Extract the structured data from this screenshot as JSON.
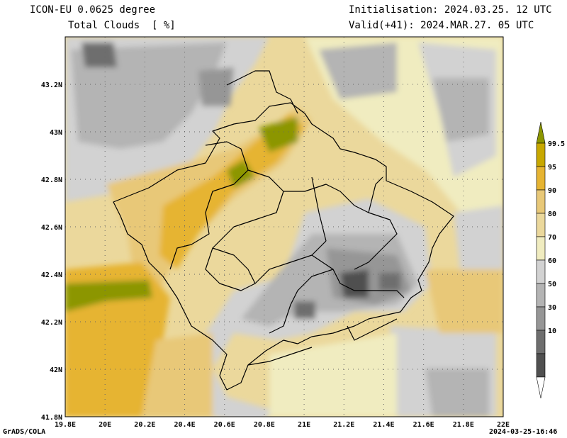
{
  "header": {
    "model": "ICON-EU 0.0625 degree",
    "variable": "Total Clouds  [ %]",
    "init": "Initialisation: 2024.03.25. 12 UTC",
    "valid": "Valid(+41): 2024.MAR.27. 05 UTC"
  },
  "map": {
    "lat_labels": [
      "43.2N",
      "43N",
      "42.8N",
      "42.6N",
      "42.4N",
      "42.2N",
      "42N",
      "41.8N"
    ],
    "lat_values": [
      43.2,
      43.0,
      42.8,
      42.6,
      42.4,
      42.2,
      42.0,
      41.8
    ],
    "lon_labels": [
      "19.8E",
      "20E",
      "20.2E",
      "20.4E",
      "20.6E",
      "20.8E",
      "21E",
      "21.2E",
      "21.4E",
      "21.6E",
      "21.8E",
      "22E"
    ],
    "lon_values": [
      19.8,
      20.0,
      20.2,
      20.4,
      20.6,
      20.8,
      21.0,
      21.2,
      21.4,
      21.6,
      21.8,
      22.0
    ],
    "lon_range": [
      19.8,
      22.0
    ],
    "lat_range": [
      41.8,
      43.4
    ],
    "gridlines": "dotted"
  },
  "colorbar": {
    "labels": [
      "99.5",
      "95",
      "90",
      "80",
      "70",
      "60",
      "50",
      "30",
      "10"
    ],
    "colors": [
      "#c8a800",
      "#e6b432",
      "#e8c878",
      "#ebd89c",
      "#f0ecc0",
      "#d2d2d2",
      "#b4b4b4",
      "#969696",
      "#6e6e6e",
      "#505050",
      "#ffffff"
    ],
    "top_color": "#8c9600"
  },
  "footer": {
    "left": "GrADS/COLA",
    "right": "2024-03-25-16:46"
  }
}
